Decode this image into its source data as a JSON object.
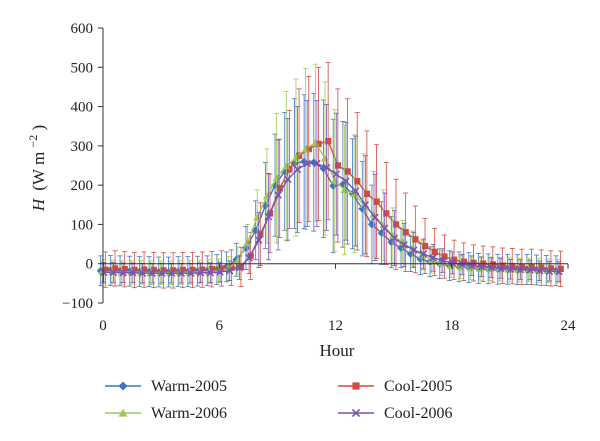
{
  "chart_data": {
    "type": "line",
    "title": "",
    "xlabel": "Hour",
    "ylabel": {
      "var": "H",
      "open": "(W m",
      "sup": "−2",
      "close": ")"
    },
    "xlim": [
      0,
      24
    ],
    "ylim": [
      -100,
      600
    ],
    "xticks": [
      "0",
      "6",
      "12",
      "18",
      "24"
    ],
    "yticks": [
      "600",
      "500",
      "400",
      "300",
      "200",
      "100",
      "0",
      "−100"
    ],
    "grid": false,
    "legend_position": "bottom",
    "x": [
      0,
      0.5,
      1,
      1.5,
      2,
      2.5,
      3,
      3.5,
      4,
      4.5,
      5,
      5.5,
      6,
      6.5,
      7,
      7.5,
      8,
      8.5,
      9,
      9.5,
      10,
      10.5,
      11,
      11.5,
      12,
      12.5,
      13,
      13.5,
      14,
      14.5,
      15,
      15.5,
      16,
      16.5,
      17,
      17.5,
      18,
      18.5,
      19,
      19.5,
      20,
      20.5,
      21,
      21.5,
      22,
      22.5,
      23,
      23.5
    ],
    "series": [
      {
        "name": "Warm-2005",
        "color": "#3b76c4",
        "marker": "diamond",
        "values": [
          -18,
          -17,
          -18,
          -19,
          -20,
          -20,
          -21,
          -21,
          -20,
          -20,
          -19,
          -18,
          -15,
          -8,
          10,
          40,
          85,
          148,
          200,
          235,
          255,
          260,
          258,
          242,
          198,
          202,
          178,
          140,
          100,
          78,
          55,
          40,
          25,
          12,
          5,
          0,
          -5,
          -8,
          -10,
          -12,
          -13,
          -14,
          -14,
          -15,
          -15,
          -16,
          -17,
          -18
        ],
        "err": [
          38,
          38,
          38,
          38,
          38,
          38,
          38,
          38,
          38,
          38,
          38,
          38,
          38,
          38,
          42,
          55,
          75,
          110,
          130,
          150,
          165,
          170,
          175,
          175,
          170,
          160,
          140,
          120,
          100,
          80,
          65,
          50,
          45,
          40,
          38,
          38,
          38,
          38,
          38,
          38,
          38,
          38,
          38,
          38,
          38,
          38,
          38,
          38
        ]
      },
      {
        "name": "Cool-2005",
        "color": "#d44a3d",
        "marker": "square",
        "values": [
          -15,
          -12,
          -14,
          -16,
          -15,
          -16,
          -17,
          -17,
          -16,
          -16,
          -15,
          -14,
          -12,
          -10,
          -8,
          20,
          75,
          128,
          192,
          240,
          275,
          292,
          305,
          312,
          250,
          235,
          210,
          178,
          158,
          128,
          100,
          80,
          62,
          45,
          30,
          18,
          10,
          5,
          2,
          0,
          -2,
          -5,
          -6,
          -8,
          -8,
          -10,
          -12,
          -13
        ],
        "err": [
          45,
          45,
          45,
          45,
          45,
          45,
          45,
          45,
          45,
          45,
          45,
          45,
          45,
          45,
          50,
          60,
          80,
          100,
          125,
          150,
          170,
          185,
          195,
          200,
          195,
          185,
          175,
          160,
          145,
          130,
          115,
          100,
          85,
          70,
          60,
          55,
          50,
          48,
          46,
          45,
          45,
          45,
          45,
          45,
          45,
          45,
          45,
          45
        ]
      },
      {
        "name": "Warm-2006",
        "color": "#9ccb53",
        "marker": "triangle",
        "values": [
          -20,
          -21,
          -22,
          -22,
          -22,
          -23,
          -23,
          -23,
          -22,
          -22,
          -21,
          -20,
          -18,
          -12,
          8,
          55,
          118,
          172,
          218,
          248,
          270,
          292,
          308,
          268,
          212,
          188,
          178,
          150,
          125,
          98,
          72,
          55,
          38,
          22,
          10,
          2,
          -5,
          -8,
          -10,
          -12,
          -13,
          -14,
          -15,
          -16,
          -16,
          -17,
          -18,
          -19
        ],
        "err": [
          30,
          30,
          30,
          30,
          30,
          30,
          30,
          30,
          30,
          30,
          30,
          30,
          30,
          30,
          35,
          45,
          70,
          120,
          165,
          190,
          200,
          205,
          200,
          195,
          180,
          165,
          150,
          130,
          110,
          90,
          70,
          55,
          45,
          38,
          34,
          32,
          30,
          30,
          30,
          30,
          30,
          30,
          30,
          30,
          30,
          30,
          30,
          30
        ]
      },
      {
        "name": "Cool-2006",
        "color": "#7a52b3",
        "marker": "x",
        "values": [
          -22,
          -22,
          -23,
          -23,
          -24,
          -24,
          -24,
          -24,
          -24,
          -24,
          -23,
          -23,
          -21,
          -18,
          -10,
          15,
          60,
          120,
          175,
          215,
          240,
          255,
          255,
          245,
          228,
          210,
          185,
          150,
          118,
          90,
          65,
          48,
          35,
          25,
          15,
          8,
          2,
          -2,
          -5,
          -8,
          -10,
          -12,
          -14,
          -15,
          -16,
          -18,
          -19,
          -20
        ],
        "err": [
          25,
          25,
          25,
          25,
          25,
          25,
          25,
          25,
          25,
          25,
          25,
          25,
          25,
          25,
          30,
          40,
          70,
          110,
          140,
          155,
          160,
          160,
          160,
          160,
          155,
          150,
          140,
          125,
          110,
          90,
          70,
          55,
          45,
          38,
          34,
          30,
          28,
          26,
          25,
          25,
          25,
          25,
          25,
          25,
          25,
          25,
          25,
          25
        ]
      }
    ]
  }
}
